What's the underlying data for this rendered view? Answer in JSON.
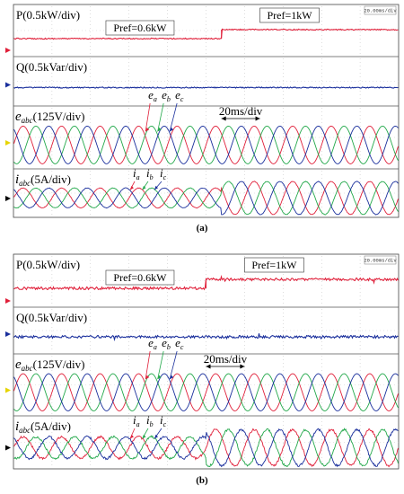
{
  "chart_data": [
    {
      "type": "line",
      "caption": "(a)",
      "timebase_badge": "20.00ms/div",
      "time_scale_label": "20ms/div",
      "x_divisions": 10,
      "step_division": 5.4,
      "traces": [
        {
          "name": "P(0.5kW/div)",
          "color": "#e0203a",
          "kind": "power_step",
          "before_label": "Pref=0.6kW",
          "after_label": "Pref=1kW",
          "noise": 0.6
        },
        {
          "name": "Q(0.5kVar/div)",
          "color": "#1a2f9c",
          "kind": "flat",
          "noise": 0.6
        },
        {
          "name_main": "e",
          "name_sub": "abc",
          "name_tail": "(125V/div)",
          "color": "#000000",
          "kind": "three_phase_voltage",
          "phase_labels": [
            "e",
            "e",
            "e"
          ],
          "phase_subs": [
            "a",
            "b",
            "c"
          ],
          "cycles_per_div": 1.0,
          "noise": 0
        },
        {
          "name_main": "i",
          "name_sub": "abc",
          "name_tail": "(5A/div)",
          "color": "#000000",
          "kind": "three_phase_current",
          "phase_labels": [
            "i",
            "i",
            "i"
          ],
          "phase_subs": [
            "a",
            "b",
            "c"
          ],
          "cycles_per_div": 1.0,
          "amp_before": 0.6,
          "amp_after": 1.0,
          "noise": 0.3
        }
      ],
      "phase_colors": {
        "a": "#e0203a",
        "b": "#22a84a",
        "c": "#1a2f9c"
      }
    },
    {
      "type": "line",
      "caption": "(b)",
      "timebase_badge": "20.00ms/div",
      "time_scale_label": "20ms/div",
      "x_divisions": 10,
      "step_division": 5.0,
      "traces": [
        {
          "name": "P(0.5kW/div)",
          "color": "#e0203a",
          "kind": "power_step",
          "before_label": "Pref=0.6kW",
          "after_label": "Pref=1kW",
          "noise": 1.4
        },
        {
          "name": "Q(0.5kVar/div)",
          "color": "#1a2f9c",
          "kind": "flat",
          "noise": 1.4
        },
        {
          "name_main": "e",
          "name_sub": "abc",
          "name_tail": "(125V/div)",
          "color": "#000000",
          "kind": "three_phase_voltage",
          "phase_labels": [
            "e",
            "e",
            "e"
          ],
          "phase_subs": [
            "a",
            "b",
            "c"
          ],
          "cycles_per_div": 1.0,
          "noise": 0
        },
        {
          "name_main": "i",
          "name_sub": "abc",
          "name_tail": "(5A/div)",
          "color": "#000000",
          "kind": "three_phase_current",
          "phase_labels": [
            "i",
            "i",
            "i"
          ],
          "phase_subs": [
            "a",
            "b",
            "c"
          ],
          "cycles_per_div": 1.0,
          "amp_before": 0.6,
          "amp_after": 1.0,
          "noise": 1.0
        }
      ],
      "phase_colors": {
        "a": "#e0203a",
        "b": "#22a84a",
        "c": "#1a2f9c"
      }
    }
  ]
}
